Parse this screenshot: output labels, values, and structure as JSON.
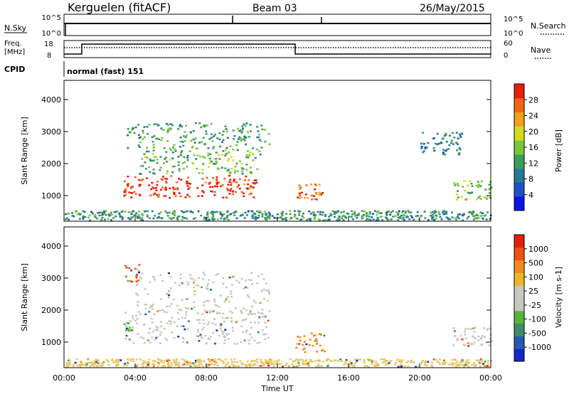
{
  "header": {
    "station": "Kerguelen (fitACF)",
    "beam": "Beam 03",
    "date": "26/May/2015"
  },
  "top_panels": {
    "nsky_label": "N.Sky",
    "nsky_ticks": [
      "10^5",
      "10^0"
    ],
    "nsearch_label": "N.Search",
    "nsearch_ticks": [
      "10^5",
      "10^0"
    ],
    "freq_label": "Freq.",
    "freq_unit": "[MHz]",
    "freq_ticks": [
      "18",
      "8"
    ],
    "nave_label": "Nave",
    "nave_ticks": [
      "60",
      "0"
    ],
    "cpid_label": "CPID",
    "cpid_value": "normal (fast) 151",
    "freq_steps": [
      {
        "t": 0,
        "level": 0.18
      },
      {
        "t": 1,
        "level": 0.82
      },
      {
        "t": 13,
        "level": 0.18
      },
      {
        "t": 24,
        "level": 0.18
      }
    ],
    "nave_dotted_level": 0.9
  },
  "chart_data": [
    {
      "type": "heatmap",
      "name": "Power",
      "ylabel": "Slant Range [km]",
      "ylim": [
        200,
        4600
      ],
      "yticks": [
        1000,
        2000,
        3000,
        4000
      ],
      "xlim": [
        0,
        24
      ],
      "colorbar": {
        "label": "Power [dB]",
        "ticks": [
          "28",
          "24",
          "20",
          "16",
          "12",
          "8",
          "4"
        ],
        "colors": [
          "#0a14e6",
          "#1e50c8",
          "#287896",
          "#3c9c5a",
          "#78c83c",
          "#d2dc1e",
          "#f0a01e",
          "#f06414",
          "#e61e0a"
        ]
      },
      "regions": [
        {
          "t0": 3.3,
          "t1": 10.8,
          "r0": 950,
          "r1": 1650,
          "level": 0.92
        },
        {
          "t0": 3.4,
          "t1": 3.8,
          "r0": 1100,
          "r1": 1450,
          "level": 0.88
        },
        {
          "t0": 4.2,
          "t1": 11.0,
          "r0": 1700,
          "r1": 2500,
          "level": 0.45
        },
        {
          "t0": 3.5,
          "t1": 11.5,
          "r0": 2500,
          "r1": 3300,
          "level": 0.4
        },
        {
          "t0": 13.0,
          "t1": 14.5,
          "r0": 900,
          "r1": 1400,
          "level": 0.82
        },
        {
          "t0": 21.8,
          "t1": 24.0,
          "r0": 900,
          "r1": 1500,
          "level": 0.5
        },
        {
          "t0": 20.0,
          "t1": 22.5,
          "r0": 2300,
          "r1": 3000,
          "level": 0.3
        },
        {
          "t0": 0,
          "t1": 24,
          "r0": 250,
          "r1": 550,
          "level": 0.35
        }
      ]
    },
    {
      "type": "heatmap",
      "name": "Velocity",
      "ylabel": "Slant Range [km]",
      "ylim": [
        200,
        4600
      ],
      "yticks": [
        1000,
        2000,
        3000,
        4000
      ],
      "xlim": [
        0,
        24
      ],
      "xticks": [
        "00:00",
        "04:00",
        "08:00",
        "12:00",
        "16:00",
        "20:00",
        "00:00"
      ],
      "xlabel": "Time UT",
      "colorbar": {
        "label": "Velocity [m s-1]",
        "ticks": [
          "1000",
          "500",
          "100",
          "25",
          "-25",
          "-100",
          "-500",
          "-1000"
        ],
        "colors": [
          "#1428c8",
          "#285ab4",
          "#3c8c64",
          "#5ab43c",
          "#c8c8c0",
          "#c8c8c0",
          "#f0b428",
          "#f08c1e",
          "#f05014",
          "#e61e0a"
        ]
      },
      "regions": [
        {
          "t0": 3.4,
          "t1": 11.5,
          "r0": 950,
          "r1": 2000,
          "color": "#c8c8c0"
        },
        {
          "t0": 4.0,
          "t1": 11.5,
          "r0": 1900,
          "r1": 3200,
          "color": "#c8c8c0"
        },
        {
          "t0": 3.3,
          "t1": 3.8,
          "r0": 1350,
          "r1": 1650,
          "color": "#5ab43c"
        },
        {
          "t0": 3.4,
          "t1": 4.2,
          "r0": 2900,
          "r1": 3500,
          "color": "#f05014"
        },
        {
          "t0": 13.0,
          "t1": 14.6,
          "r0": 700,
          "r1": 1300,
          "color": "#f08c1e"
        },
        {
          "t0": 21.8,
          "t1": 24.0,
          "r0": 900,
          "r1": 1500,
          "color": "#c8c8c0"
        },
        {
          "t0": 0,
          "t1": 24,
          "r0": 250,
          "r1": 500,
          "color": "#e8c864"
        }
      ]
    }
  ]
}
